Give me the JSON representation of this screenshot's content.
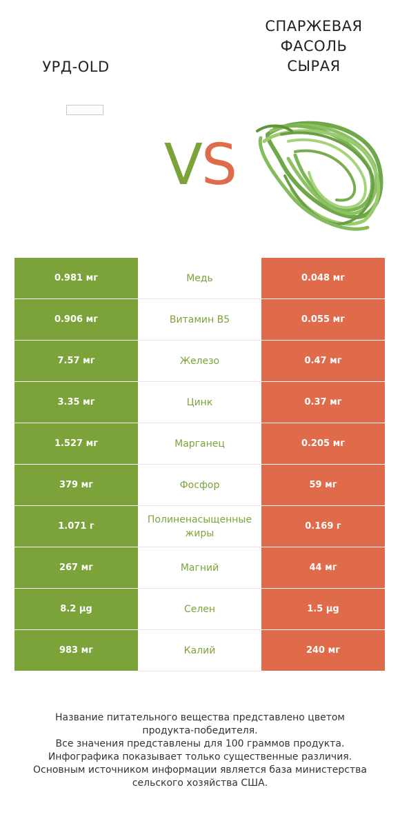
{
  "left_product": {
    "title": "УРД-OLD",
    "image": "missing-image-placeholder"
  },
  "right_product": {
    "title_lines": [
      "СПАРЖЕВАЯ",
      "ФАСОЛЬ",
      "СЫРАЯ"
    ],
    "image": "green-beans-bundle"
  },
  "vs": {
    "v": "V",
    "s": "S"
  },
  "colors": {
    "winner_left": "#7ba33a",
    "winner_right": "#e06b4b",
    "text": "#333333"
  },
  "rows": [
    {
      "left": "0.981 мг",
      "nutrient": "Медь",
      "right": "0.048 мг"
    },
    {
      "left": "0.906 мг",
      "nutrient": "Витамин B5",
      "right": "0.055 мг"
    },
    {
      "left": "7.57 мг",
      "nutrient": "Железо",
      "right": "0.47 мг"
    },
    {
      "left": "3.35 мг",
      "nutrient": "Цинк",
      "right": "0.37 мг"
    },
    {
      "left": "1.527 мг",
      "nutrient": "Марганец",
      "right": "0.205 мг"
    },
    {
      "left": "379 мг",
      "nutrient": "Фосфор",
      "right": "59 мг"
    },
    {
      "left": "1.071 г",
      "nutrient": "Полиненасыщенные жиры",
      "right": "0.169 г"
    },
    {
      "left": "267 мг",
      "nutrient": "Магний",
      "right": "44 мг"
    },
    {
      "left": "8.2 µg",
      "nutrient": "Селен",
      "right": "1.5 µg"
    },
    {
      "left": "983 мг",
      "nutrient": "Калий",
      "right": "240 мг"
    }
  ],
  "footer_lines": [
    "Название питательного вещества представлено цветом",
    "продукта-победителя.",
    "Все значения представлены для 100 граммов продукта.",
    "Инфографика показывает только существенные различия.",
    "Основным источником информации является база министерства",
    "сельского хозяйства США."
  ]
}
